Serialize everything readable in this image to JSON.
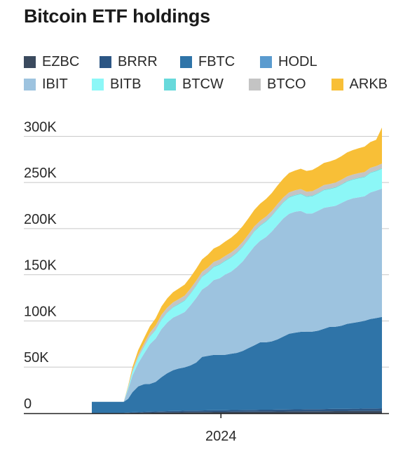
{
  "title": "Bitcoin ETF holdings",
  "chart_data": {
    "type": "area",
    "stacked": true,
    "title": "Bitcoin ETF holdings",
    "xlabel": "",
    "ylabel": "",
    "x": [
      0,
      0.02,
      0.1,
      0.11,
      0.125,
      0.14,
      0.16,
      0.18,
      0.2,
      0.22,
      0.24,
      0.26,
      0.28,
      0.3,
      0.32,
      0.34,
      0.36,
      0.38,
      0.4,
      0.42,
      0.44,
      0.46,
      0.48,
      0.5,
      0.52,
      0.54,
      0.56,
      0.58,
      0.6,
      0.62,
      0.64,
      0.66,
      0.68,
      0.7,
      0.72,
      0.74,
      0.76,
      0.78,
      0.8,
      0.82,
      0.84,
      0.86,
      0.88,
      0.9,
      0.92,
      0.94,
      0.96,
      0.98,
      1.0
    ],
    "x_tick_labels": [
      {
        "label": "2024",
        "at": 0.445
      }
    ],
    "ylim": [
      0,
      320000
    ],
    "yticks": [
      {
        "value": 0,
        "label": "0"
      },
      {
        "value": 50000,
        "label": "50K"
      },
      {
        "value": 100000,
        "label": "100K"
      },
      {
        "value": 150000,
        "label": "150K"
      },
      {
        "value": 200000,
        "label": "200K"
      },
      {
        "value": 250000,
        "label": "250K"
      },
      {
        "value": 300000,
        "label": "300K"
      }
    ],
    "grid": true,
    "legend_position": "top",
    "series": [
      {
        "name": "EZBC",
        "color": "#3b4a5e",
        "values": [
          100,
          100,
          100,
          100,
          200,
          300,
          400,
          600,
          700,
          800,
          900,
          1000,
          1100,
          1100,
          1200,
          1300,
          1300,
          1400,
          1400,
          1500,
          1500,
          1500,
          1600,
          1600,
          1600,
          1700,
          1700,
          1800,
          1800,
          1800,
          1900,
          1900,
          2000,
          2000,
          2000,
          2100,
          2100,
          2100,
          2200,
          2200,
          2300,
          2300,
          2300,
          2400,
          2400,
          2500,
          2500,
          2500,
          2600
        ]
      },
      {
        "name": "BRRR",
        "color": "#2c5684",
        "values": [
          300,
          300,
          300,
          300,
          400,
          500,
          700,
          900,
          1000,
          1100,
          1200,
          1300,
          1400,
          1400,
          1500,
          1500,
          1600,
          1600,
          1700,
          1700,
          1700,
          1800,
          1800,
          1800,
          1900,
          1900,
          1900,
          2000,
          2000,
          2000,
          2100,
          2100,
          2100,
          2200,
          2200,
          2200,
          2300,
          2300,
          2300,
          2400,
          2400,
          2400,
          2500,
          2500,
          2500,
          2600,
          2600,
          2600,
          2700
        ]
      },
      {
        "name": "FBTC",
        "color": "#2f74a8",
        "values": [
          12000,
          12000,
          12000,
          12000,
          15000,
          22000,
          28000,
          30000,
          30000,
          32000,
          37000,
          41000,
          44000,
          46000,
          47000,
          49000,
          52000,
          58000,
          59000,
          60000,
          60000,
          60000,
          61000,
          62000,
          64000,
          67000,
          70000,
          73000,
          73000,
          74000,
          76000,
          79000,
          82000,
          83000,
          84000,
          84000,
          84000,
          85000,
          87000,
          89000,
          89000,
          90000,
          92000,
          93000,
          94000,
          95000,
          97000,
          98000,
          99000
        ]
      },
      {
        "name": "HODL",
        "color": "#5a9bcf",
        "values": [
          0,
          0,
          0,
          0,
          0,
          0,
          0,
          0,
          0,
          0,
          0,
          0,
          0,
          0,
          0,
          0,
          0,
          0,
          0,
          0,
          0,
          0,
          0,
          0,
          0,
          0,
          0,
          0,
          0,
          0,
          0,
          0,
          0,
          0,
          0,
          0,
          0,
          0,
          0,
          0,
          0,
          0,
          0,
          0,
          0,
          0,
          0,
          0,
          0
        ]
      },
      {
        "name": "IBIT",
        "color": "#9dc3df",
        "values": [
          0,
          0,
          0,
          0,
          10000,
          18000,
          25000,
          33000,
          43000,
          47000,
          52000,
          55000,
          57000,
          58000,
          60000,
          65000,
          70000,
          73000,
          76000,
          81000,
          83000,
          87000,
          89000,
          93000,
          97000,
          102000,
          107000,
          110000,
          114000,
          119000,
          124000,
          128000,
          130000,
          131000,
          131000,
          128000,
          128000,
          130000,
          131000,
          130000,
          131000,
          133000,
          134000,
          135000,
          135000,
          135000,
          137000,
          138000,
          139000
        ]
      },
      {
        "name": "BITB",
        "color": "#8cf7f7",
        "values": [
          0,
          0,
          0,
          0,
          2000,
          4000,
          6000,
          7000,
          8000,
          9000,
          10000,
          10500,
          11000,
          11500,
          12000,
          12500,
          13000,
          13500,
          14000,
          14000,
          14500,
          14500,
          15000,
          15000,
          15500,
          15500,
          16000,
          16000,
          16500,
          16500,
          17000,
          17000,
          17500,
          17500,
          18000,
          18000,
          18500,
          18500,
          19000,
          19000,
          19500,
          19500,
          20000,
          20000,
          20500,
          20500,
          21000,
          21000,
          21500
        ]
      },
      {
        "name": "BTCW",
        "color": "#67d9db",
        "values": [
          0,
          0,
          0,
          0,
          100,
          200,
          300,
          400,
          500,
          500,
          600,
          600,
          600,
          700,
          700,
          700,
          700,
          700,
          700,
          700,
          700,
          700,
          700,
          700,
          700,
          700,
          700,
          700,
          700,
          700,
          700,
          700,
          700,
          700,
          700,
          700,
          700,
          700,
          700,
          700,
          700,
          700,
          700,
          700,
          700,
          700,
          700,
          700,
          700
        ]
      },
      {
        "name": "BTCO",
        "color": "#c4c4c4",
        "values": [
          0,
          0,
          0,
          0,
          1000,
          2000,
          3000,
          3500,
          4000,
          4500,
          5000,
          5000,
          5000,
          5000,
          5000,
          5000,
          5000,
          5000,
          5000,
          5000,
          5000,
          5000,
          5000,
          5000,
          5000,
          5000,
          5000,
          5000,
          5000,
          5000,
          5000,
          5000,
          5000,
          5000,
          5000,
          5000,
          5000,
          5000,
          5000,
          5000,
          5000,
          5000,
          5000,
          5000,
          5000,
          5000,
          5000,
          5000,
          5000
        ]
      },
      {
        "name": "ARKB",
        "color": "#f8bf37",
        "values": [
          0,
          0,
          0,
          0,
          1000,
          3000,
          5000,
          6000,
          7000,
          8000,
          9000,
          10000,
          11000,
          11500,
          12000,
          12500,
          13000,
          13500,
          14000,
          14500,
          15000,
          15500,
          16000,
          16500,
          17000,
          17500,
          18000,
          18500,
          19000,
          19500,
          20000,
          20500,
          21000,
          21500,
          22000,
          22500,
          23000,
          23500,
          24000,
          24500,
          25000,
          25500,
          26000,
          26500,
          27000,
          27500,
          28000,
          28500,
          39000
        ]
      }
    ]
  }
}
